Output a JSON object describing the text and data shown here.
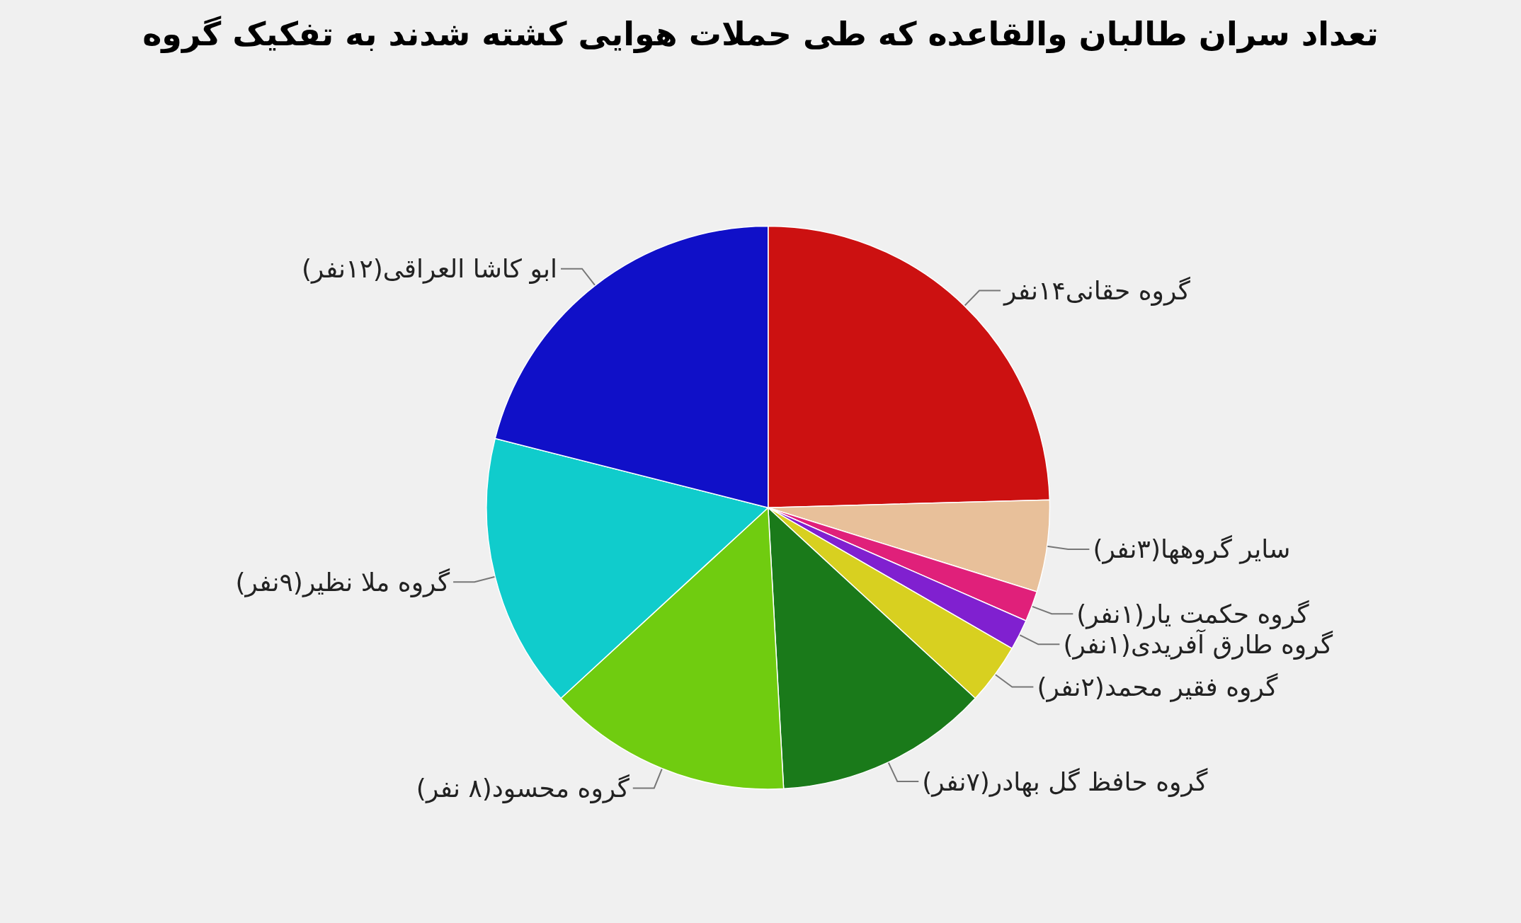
{
  "chart_data": {
    "type": "pie",
    "title": "تعداد سران طالبان والقاعده که طی حملات هوایی کشته شدند به تفکیک گروه",
    "categories": [
      "گروه حقانی۱۴نفر",
      "سایر گروهها(۳نفر)",
      "گروه حکمت یار(۱نفر)",
      "گروه طارق آفریدی(۱نفر)",
      "گروه فقیر محمد(۲نفر)",
      "گروه حافظ گل بهادر(۷نفر)",
      "گروه محسود(۸ نفر)",
      "گروه ملا نظیر(۹نفر)",
      "ابو کاشا العراقی(۱۲نفر)"
    ],
    "values": [
      14,
      3,
      1,
      1,
      2,
      7,
      8,
      9,
      12
    ],
    "colors": [
      "#cc1111",
      "#e8c09a",
      "#e0207a",
      "#8020d0",
      "#d8d020",
      "#1a7a1a",
      "#70cc10",
      "#10cccc",
      "#1010c8"
    ]
  }
}
